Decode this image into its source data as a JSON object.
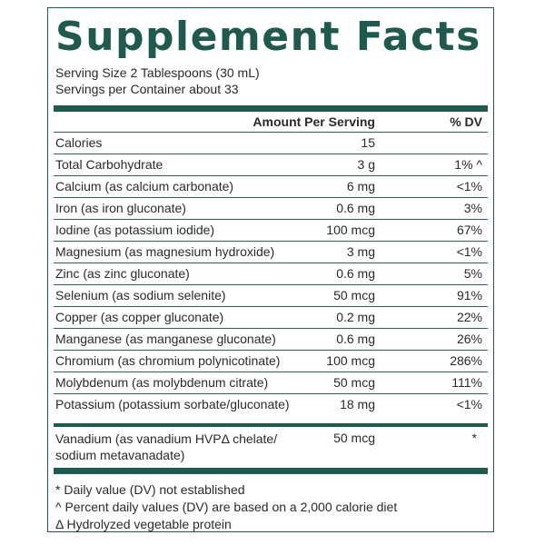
{
  "label": {
    "title": "Supplement Facts",
    "serving_size": "Serving Size 2 Tablespoons (30 mL)",
    "servings_per_container": "Servings per Container about 33",
    "header_amount": "Amount Per Serving",
    "header_dv": "% DV",
    "rows": [
      {
        "name": "Calories",
        "amount": "15",
        "dv": ""
      },
      {
        "name": "Total Carbohydrate",
        "amount": "3 g",
        "dv": "1% ^"
      },
      {
        "name": "Calcium (as calcium carbonate)",
        "amount": "6 mg",
        "dv": "<1%"
      },
      {
        "name": "Iron (as iron gluconate)",
        "amount": "0.6 mg",
        "dv": "3%"
      },
      {
        "name": "Iodine (as potassium iodide)",
        "amount": "100 mcg",
        "dv": "67%"
      },
      {
        "name": "Magnesium (as magnesium hydroxide)",
        "amount": "3 mg",
        "dv": "<1%"
      },
      {
        "name": "Zinc (as zinc gluconate)",
        "amount": "0.6 mg",
        "dv": "5%"
      },
      {
        "name": "Selenium (as sodium selenite)",
        "amount": "50 mcg",
        "dv": "91%"
      },
      {
        "name": "Copper (as copper gluconate)",
        "amount": "0.2 mg",
        "dv": "22%"
      },
      {
        "name": "Manganese (as manganese gluconate)",
        "amount": "0.6 mg",
        "dv": "26%"
      },
      {
        "name": "Chromium (as chromium polynicotinate)",
        "amount": "100 mcg",
        "dv": "286%"
      },
      {
        "name": "Molybdenum (as molybdenum citrate)",
        "amount": "50 mcg",
        "dv": "111%"
      },
      {
        "name": "Potassium (potassium sorbate/gluconate)",
        "amount": "18 mg",
        "dv": "<1%"
      }
    ],
    "vanadium": {
      "name_line1": "Vanadium (as vanadium HVPΔ chelate/",
      "name_line2": "sodium metavanadate)",
      "amount": "50 mcg",
      "dv": "*"
    },
    "footnotes": [
      "* Daily value (DV) not established",
      "^ Percent daily values (DV) are based on a 2,000 calorie diet",
      "Δ Hydrolyzed vegetable protein"
    ]
  },
  "colors": {
    "accent": "#1f5a4f",
    "text": "#2a2a2a"
  }
}
